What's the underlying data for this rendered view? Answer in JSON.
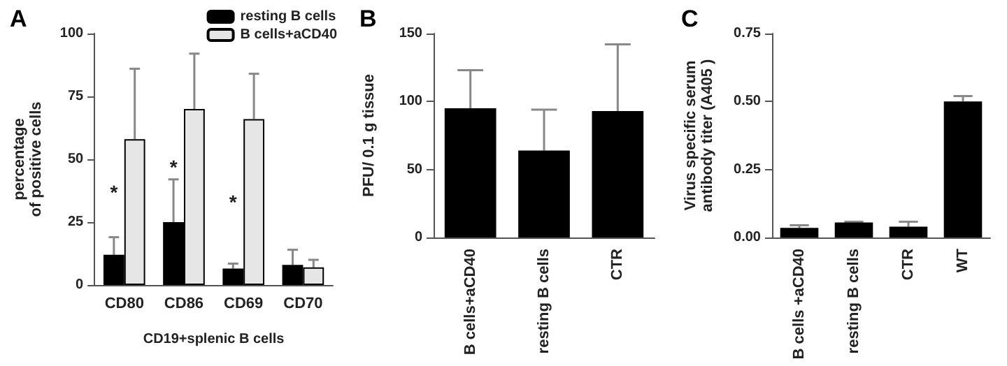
{
  "chart_data": [
    {
      "type": "bar",
      "title": "A",
      "xlabel": "CD19+splenic B cells",
      "ylabel": "percentage\nof positive cells",
      "categories": [
        "CD80",
        "CD86",
        "CD69",
        "CD70"
      ],
      "ylim": [
        0,
        100
      ],
      "yticks": [
        0,
        25,
        50,
        75,
        100
      ],
      "legend": "top right",
      "grid": false,
      "series": [
        {
          "name": "resting B cells",
          "color": "#000000",
          "values": [
            12,
            25,
            6.5,
            8
          ],
          "errors": [
            [
              12,
              19
            ],
            [
              25,
              42
            ],
            [
              6.5,
              8.5
            ],
            [
              8,
              14
            ]
          ]
        },
        {
          "name": "B cells+aCD40",
          "color": "#e6e6e6",
          "values": [
            58,
            70,
            66,
            7
          ],
          "errors": [
            [
              58,
              86
            ],
            [
              70,
              92
            ],
            [
              66,
              84
            ],
            [
              7,
              10
            ]
          ]
        }
      ],
      "annotations": [
        {
          "text": "*",
          "x": "CD80",
          "y": 37
        },
        {
          "text": "*",
          "x": "CD86",
          "y": 47
        },
        {
          "text": "*",
          "x": "CD69",
          "y": 33
        }
      ]
    },
    {
      "type": "bar",
      "title": "B",
      "ylabel": "PFU/ 0.1 g tissue",
      "categories": [
        "B cells+aCD40",
        "resting B cells",
        "CTR"
      ],
      "ylim": [
        0,
        150
      ],
      "yticks": [
        0,
        50,
        100,
        150
      ],
      "grid": false,
      "series": [
        {
          "color": "#000000",
          "values": [
            95,
            64,
            93
          ],
          "errors": [
            [
              95,
              123
            ],
            [
              64,
              94
            ],
            [
              93,
              142
            ]
          ]
        }
      ]
    },
    {
      "type": "bar",
      "title": "C",
      "ylabel": "Virus specific serum\nantibody titer (A405 )",
      "categories": [
        "B cells +aCD40",
        "resting B cells",
        "CTR",
        "WT"
      ],
      "ylim": [
        0,
        0.75
      ],
      "yticks": [
        {
          "value": 0,
          "label": "0.00"
        },
        {
          "value": 0.25,
          "label": "0.25"
        },
        {
          "value": 0.5,
          "label": "0.50"
        },
        {
          "value": 0.75,
          "label": "0.75"
        }
      ],
      "grid": false,
      "series": [
        {
          "color": "#000000",
          "values": [
            0.035,
            0.055,
            0.04,
            0.5
          ],
          "errors": [
            [
              0.035,
              0.045
            ],
            [
              0.055,
              0.058
            ],
            [
              0.04,
              0.058
            ],
            [
              0.5,
              0.52
            ]
          ]
        }
      ]
    }
  ]
}
